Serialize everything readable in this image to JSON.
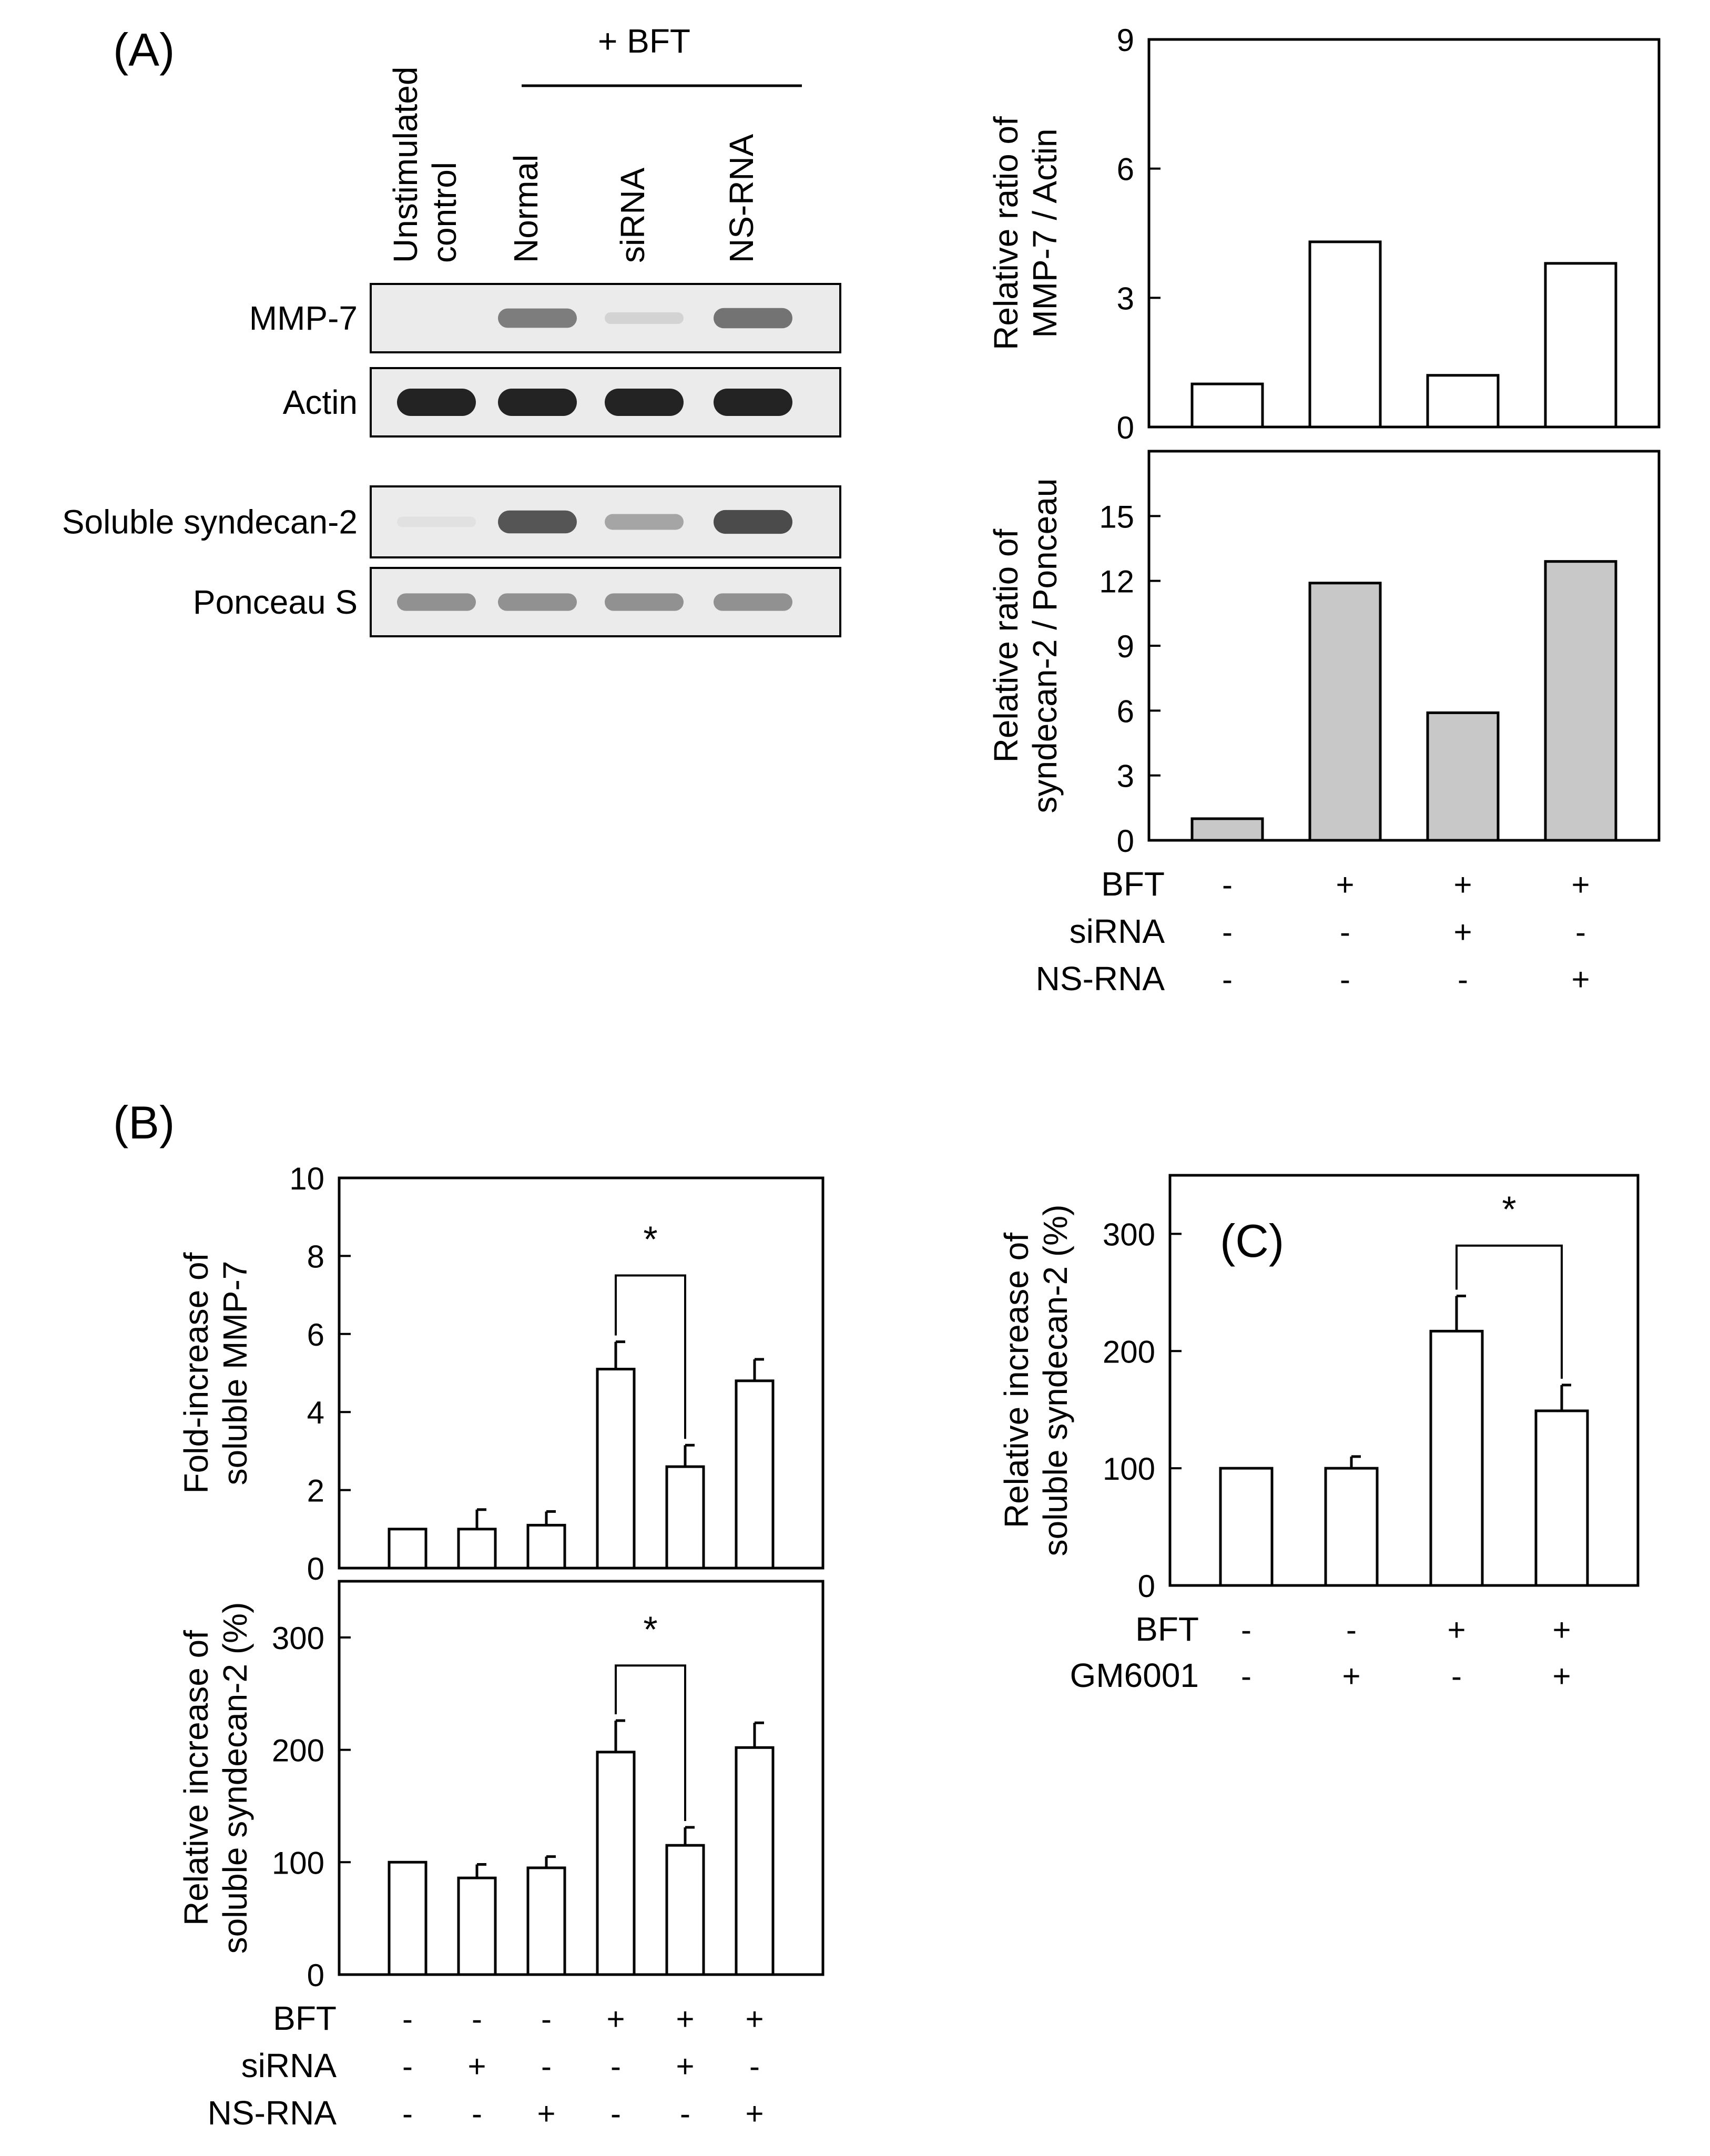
{
  "panel_labels": {
    "A": "(A)",
    "B": "(B)",
    "C": "(C)"
  },
  "colors": {
    "bar_white": "#ffffff",
    "bar_gray": "#c8c8c8",
    "ink": "#000000"
  },
  "blot": {
    "bft_header": "+ BFT",
    "lanes": [
      {
        "lines": [
          "Unstimulated",
          "control"
        ]
      },
      {
        "lines": [
          "Normal"
        ]
      },
      {
        "lines": [
          "siRNA"
        ]
      },
      {
        "lines": [
          "NS-RNA"
        ]
      }
    ],
    "rows": [
      {
        "label": "MMP-7",
        "intensity": [
          0.0,
          0.55,
          0.12,
          0.6
        ]
      },
      {
        "label": "Actin",
        "intensity": [
          1.0,
          1.0,
          1.0,
          1.0
        ]
      },
      {
        "label": "Soluble syndecan-2",
        "intensity": [
          0.05,
          0.75,
          0.35,
          0.8
        ]
      },
      {
        "label": "Ponceau S",
        "intensity": [
          0.45,
          0.45,
          0.45,
          0.45
        ]
      }
    ]
  },
  "chart_data": [
    {
      "id": "A-top",
      "type": "bar",
      "categories": [
        "1",
        "2",
        "3",
        "4"
      ],
      "values": [
        1.0,
        4.3,
        1.2,
        3.8
      ],
      "ylabel_lines": [
        "Relative ratio of",
        "MMP-7 / Actin"
      ],
      "ylim": [
        0,
        9
      ],
      "yticks": [
        0,
        3,
        6,
        9
      ],
      "fill": "white"
    },
    {
      "id": "A-bottom",
      "type": "bar",
      "categories": [
        "1",
        "2",
        "3",
        "4"
      ],
      "values": [
        1.0,
        11.9,
        5.9,
        12.9
      ],
      "ylabel_lines": [
        "Relative ratio of",
        "syndecan-2 / Ponceau"
      ],
      "ylim": [
        0,
        18
      ],
      "yticks": [
        0,
        3,
        6,
        9,
        12,
        15
      ],
      "fill": "gray",
      "conditions": [
        {
          "name": "BFT",
          "signs": [
            "-",
            "+",
            "+",
            "+"
          ]
        },
        {
          "name": "siRNA",
          "signs": [
            "-",
            "-",
            "+",
            "-"
          ]
        },
        {
          "name": "NS-RNA",
          "signs": [
            "-",
            "-",
            "-",
            "+"
          ]
        }
      ]
    },
    {
      "id": "B-top",
      "type": "bar",
      "categories": [
        "1",
        "2",
        "3",
        "4",
        "5",
        "6"
      ],
      "values": [
        1.0,
        1.0,
        1.1,
        5.1,
        2.6,
        4.8
      ],
      "errors": [
        0,
        0.5,
        0.35,
        0.7,
        0.55,
        0.55
      ],
      "ylabel_lines": [
        "Fold-increase of",
        "soluble MMP-7"
      ],
      "ylim": [
        0,
        10
      ],
      "yticks": [
        0,
        2,
        4,
        6,
        8,
        10
      ],
      "fill": "white",
      "sig": {
        "from": 3,
        "to": 4,
        "y": 7.5,
        "label": "*"
      }
    },
    {
      "id": "B-bottom",
      "type": "bar",
      "categories": [
        "1",
        "2",
        "3",
        "4",
        "5",
        "6"
      ],
      "values": [
        100,
        86,
        95,
        198,
        115,
        202
      ],
      "errors": [
        0,
        12,
        10,
        28,
        16,
        22
      ],
      "ylabel_lines": [
        "Relative increase of",
        "soluble syndecan-2  (%)"
      ],
      "ylim": [
        0,
        350
      ],
      "yticks": [
        0,
        100,
        200,
        300
      ],
      "fill": "white",
      "sig": {
        "from": 3,
        "to": 4,
        "y": 275,
        "label": "*"
      },
      "conditions": [
        {
          "name": "BFT",
          "signs": [
            "-",
            "-",
            "-",
            "+",
            "+",
            "+"
          ]
        },
        {
          "name": "siRNA",
          "signs": [
            "-",
            "+",
            "-",
            "-",
            "+",
            "-"
          ]
        },
        {
          "name": "NS-RNA",
          "signs": [
            "-",
            "-",
            "+",
            "-",
            "-",
            "+"
          ]
        }
      ]
    },
    {
      "id": "C",
      "type": "bar",
      "categories": [
        "1",
        "2",
        "3",
        "4"
      ],
      "values": [
        100,
        100,
        217,
        149
      ],
      "errors": [
        0,
        10,
        30,
        22
      ],
      "ylabel_lines": [
        "Relative increase of",
        "soluble syndecan-2  (%)"
      ],
      "ylim": [
        0,
        350
      ],
      "yticks": [
        0,
        100,
        200,
        300
      ],
      "fill": "white",
      "sig": {
        "from": 2,
        "to": 3,
        "y": 290,
        "label": "*"
      },
      "conditions": [
        {
          "name": "BFT",
          "signs": [
            "-",
            "-",
            "+",
            "+"
          ]
        },
        {
          "name": "GM6001",
          "signs": [
            "-",
            "+",
            "-",
            "+"
          ]
        }
      ]
    }
  ]
}
